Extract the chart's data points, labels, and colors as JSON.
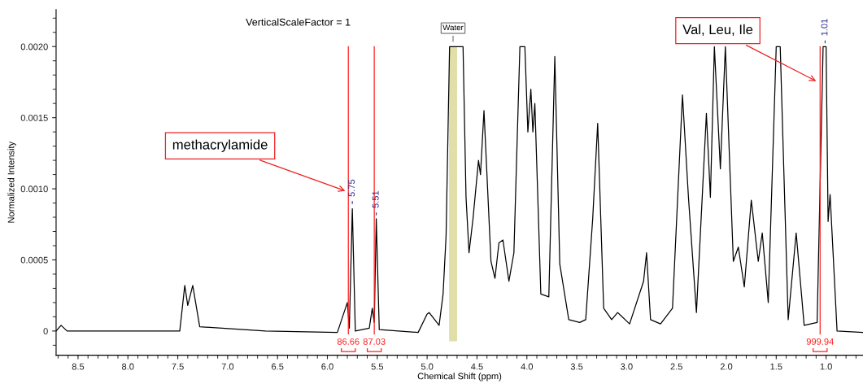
{
  "chart_data": {
    "type": "line",
    "xlabel": "Chemical Shift (ppm)",
    "ylabel": "Normalized Intensity",
    "x": [
      8.72,
      8.67,
      8.61,
      7.48,
      7.43,
      7.4,
      7.35,
      7.28,
      6.62,
      5.9,
      5.8,
      5.78,
      5.75,
      5.72,
      5.58,
      5.55,
      5.53,
      5.51,
      5.48,
      5.09,
      5.0,
      4.98,
      4.88,
      4.84,
      4.81,
      4.775,
      4.64,
      4.61,
      4.58,
      4.54,
      4.485,
      4.465,
      4.43,
      4.36,
      4.32,
      4.28,
      4.24,
      4.18,
      4.13,
      4.07,
      4.02,
      3.99,
      3.96,
      3.94,
      3.92,
      3.86,
      3.78,
      3.72,
      3.67,
      3.58,
      3.47,
      3.41,
      3.34,
      3.29,
      3.23,
      3.15,
      3.09,
      2.97,
      2.83,
      2.8,
      2.76,
      2.66,
      2.54,
      2.44,
      2.38,
      2.3,
      2.2,
      2.16,
      2.12,
      2.06,
      2.01,
      1.93,
      1.88,
      1.82,
      1.75,
      1.68,
      1.64,
      1.58,
      1.5,
      1.46,
      1.38,
      1.3,
      1.22,
      1.09,
      1.03,
      1.0,
      0.98,
      0.96,
      0.89,
      0.63
    ],
    "series": [
      {
        "color": "#000000",
        "values": [
          0.0,
          4e-05,
          0.0,
          0.0,
          0.00032,
          0.00018,
          0.00032,
          3e-05,
          0.0,
          -1e-05,
          0.0002,
          2e-05,
          0.00086,
          0.0,
          2e-05,
          0.00016,
          6e-05,
          0.00079,
          1e-05,
          -1e-05,
          0.00012,
          0.00013,
          4e-05,
          0.00026,
          0.00067,
          0.002,
          0.002,
          0.00094,
          0.00055,
          0.00079,
          0.0012,
          0.0011,
          0.00155,
          0.00049,
          0.00037,
          0.00062,
          0.00064,
          0.00035,
          0.00055,
          0.002,
          0.002,
          0.0014,
          0.0017,
          0.0014,
          0.0016,
          0.00026,
          0.00024,
          0.00193,
          0.00047,
          8e-05,
          6e-05,
          8e-05,
          0.00079,
          0.00146,
          0.00016,
          8e-05,
          0.00013,
          5e-05,
          0.00035,
          0.00055,
          8e-05,
          5e-05,
          0.00016,
          0.00166,
          0.00094,
          0.00013,
          0.00153,
          0.00094,
          0.002,
          0.00114,
          0.002,
          0.00049,
          0.00059,
          0.00031,
          0.00092,
          0.00049,
          0.00069,
          0.0002,
          0.002,
          0.002,
          8e-05,
          0.00069,
          4e-05,
          6e-05,
          0.002,
          0.002,
          0.00077,
          0.00096,
          0.0,
          -1e-05
        ]
      }
    ],
    "xlim": [
      8.72,
      0.63
    ],
    "ylim": [
      -0.00017,
      0.00226
    ],
    "xticks": [
      8.5,
      {
        "value": 8,
        "label": "8.0"
      },
      7.5,
      {
        "value": 7,
        "label": "7.0"
      },
      6.5,
      {
        "value": 6,
        "label": "6.0"
      },
      5.5,
      {
        "value": 5,
        "label": "5.0"
      },
      4.5,
      {
        "value": 4,
        "label": "4.0"
      },
      3.5,
      {
        "value": 3,
        "label": "3.0"
      },
      2.5,
      {
        "value": 2,
        "label": "2.0"
      },
      1.5,
      {
        "value": 1,
        "label": "1.0"
      }
    ],
    "yticks": [
      0,
      0.0005,
      {
        "value": 0.001,
        "label": "0.0010"
      },
      0.0015,
      {
        "value": 0.002,
        "label": "0.0020"
      }
    ],
    "grid": false,
    "marker": "none",
    "line_style": "solid",
    "annotations": [
      "VerticalScaleFactor = 1",
      {
        "text": "methacrylamide",
        "x": 5.8,
        "y": 0.00098
      },
      {
        "text": "Val, Leu, Ile",
        "x": 1.08,
        "y": 0.00175
      },
      {
        "text": "5.75",
        "x": 5.75,
        "y": 0.00088
      },
      {
        "text": "5.51",
        "x": 5.51,
        "y": 0.0008
      },
      {
        "text": "1.01",
        "x": 1.01,
        "y": 0.00201
      },
      "86.66",
      "87.03",
      "999.94"
    ],
    "bands": [
      {
        "axis": "x",
        "from": 4.78,
        "to": 4.7,
        "label": "Water",
        "color": "#e0dfa8"
      }
    ],
    "ref_lines": [
      {
        "axis": "x",
        "value": 5.79,
        "color": "#ff2020"
      },
      {
        "axis": "x",
        "value": 5.53,
        "color": "#ff2020"
      },
      {
        "axis": "x",
        "value": 1.06,
        "color": "#ff2020"
      }
    ]
  }
}
